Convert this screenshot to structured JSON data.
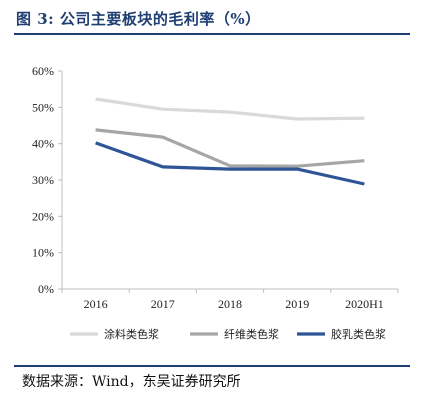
{
  "header": {
    "title": "图 3:  公司主要板块的毛利率（%）"
  },
  "footer": {
    "source": "数据来源：Wind，东吴证券研究所"
  },
  "colors": {
    "title": "#1f3f73",
    "rule": "#1f3f73"
  },
  "chart_data": {
    "type": "line",
    "categories": [
      "2016",
      "2017",
      "2018",
      "2019",
      "2020H1"
    ],
    "ylim": [
      0,
      60
    ],
    "yticks": [
      "0%",
      "10%",
      "20%",
      "30%",
      "40%",
      "50%",
      "60%"
    ],
    "grid": false,
    "legend_position": "bottom",
    "series": [
      {
        "name": "涂料类色浆",
        "values": [
          52.3,
          49.5,
          48.7,
          46.8,
          47.0
        ],
        "color": "#d9d9d9"
      },
      {
        "name": "纤维类色浆",
        "values": [
          43.8,
          41.8,
          33.9,
          33.8,
          35.3
        ],
        "color": "#a6a6a6"
      },
      {
        "name": "胶乳类色浆",
        "values": [
          40.2,
          33.6,
          33.0,
          33.0,
          28.9
        ],
        "color": "#2f5597"
      }
    ]
  }
}
